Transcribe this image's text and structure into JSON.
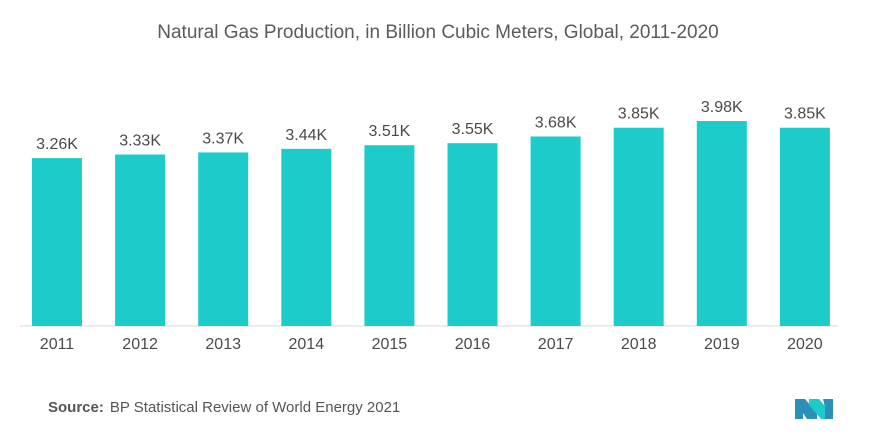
{
  "chart_data": {
    "type": "bar",
    "title": "Natural Gas Production, in Billion Cubic Meters, Global, 2011-2020",
    "categories": [
      "2011",
      "2012",
      "2013",
      "2014",
      "2015",
      "2016",
      "2017",
      "2018",
      "2019",
      "2020"
    ],
    "values": [
      3.26,
      3.33,
      3.37,
      3.44,
      3.51,
      3.55,
      3.68,
      3.85,
      3.98,
      3.85
    ],
    "data_labels": [
      "3.26K",
      "3.33K",
      "3.37K",
      "3.44K",
      "3.51K",
      "3.55K",
      "3.68K",
      "3.85K",
      "3.98K",
      "3.85K"
    ],
    "xlabel": "",
    "ylabel": "",
    "ylim": [
      0,
      4
    ],
    "grid": false,
    "bar_color": "#1ecbcb"
  },
  "footer": {
    "source_label": "Source:",
    "source_text": "BP Statistical Review of World Energy 2021"
  },
  "logo": {
    "icon": "mordor-intelligence-logo",
    "color": "#2b8fb8",
    "accent": "#1ecbcb"
  }
}
